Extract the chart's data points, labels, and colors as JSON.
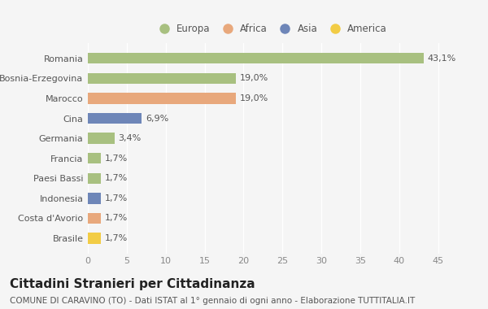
{
  "categories": [
    "Brasile",
    "Costa d'Avorio",
    "Indonesia",
    "Paesi Bassi",
    "Francia",
    "Germania",
    "Cina",
    "Marocco",
    "Bosnia-Erzegovina",
    "Romania"
  ],
  "values": [
    1.7,
    1.7,
    1.7,
    1.7,
    1.7,
    3.4,
    6.9,
    19.0,
    19.0,
    43.1
  ],
  "colors": [
    "#f2cc45",
    "#e8a87c",
    "#6e86b8",
    "#a8c080",
    "#a8c080",
    "#a8c080",
    "#6e86b8",
    "#e8a87c",
    "#a8c080",
    "#a8c080"
  ],
  "labels": [
    "1,7%",
    "1,7%",
    "1,7%",
    "1,7%",
    "1,7%",
    "3,4%",
    "6,9%",
    "19,0%",
    "19,0%",
    "43,1%"
  ],
  "legend": [
    {
      "label": "Europa",
      "color": "#a8c080"
    },
    {
      "label": "Africa",
      "color": "#e8a87c"
    },
    {
      "label": "Asia",
      "color": "#6e86b8"
    },
    {
      "label": "America",
      "color": "#f2cc45"
    }
  ],
  "xlim": [
    0,
    47
  ],
  "xticks": [
    0,
    5,
    10,
    15,
    20,
    25,
    30,
    35,
    40,
    45
  ],
  "title": "Cittadini Stranieri per Cittadinanza",
  "subtitle": "COMUNE DI CARAVINO (TO) - Dati ISTAT al 1° gennaio di ogni anno - Elaborazione TUTTITALIA.IT",
  "background_color": "#f5f5f5",
  "bar_height": 0.55,
  "title_fontsize": 11,
  "subtitle_fontsize": 7.5,
  "label_fontsize": 8,
  "tick_fontsize": 8,
  "legend_fontsize": 8.5
}
